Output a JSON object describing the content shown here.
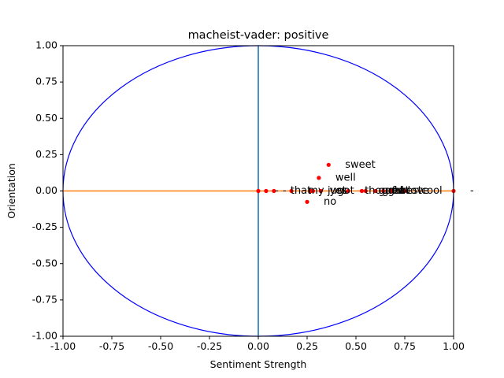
{
  "chart_data": {
    "type": "scatter",
    "title": "macheist-vader: positive",
    "xlabel": "Sentiment Strength",
    "ylabel": "Orientation",
    "xlim": [
      -1.0,
      1.0
    ],
    "ylim": [
      -1.0,
      1.0
    ],
    "x_ticks": [
      "-1.00",
      "-0.75",
      "-0.50",
      "-0.25",
      "0.00",
      "0.25",
      "0.50",
      "0.75",
      "1.00"
    ],
    "y_ticks": [
      "-1.00",
      "-0.75",
      "-0.50",
      "-0.25",
      "0.00",
      "0.25",
      "0.50",
      "0.75",
      "1.00"
    ],
    "x_tick_values": [
      -1.0,
      -0.75,
      -0.5,
      -0.25,
      0.0,
      0.25,
      0.5,
      0.75,
      1.0
    ],
    "y_tick_values": [
      -1.0,
      -0.75,
      -0.5,
      -0.25,
      0.0,
      0.25,
      0.5,
      0.75,
      1.0
    ],
    "grid": false,
    "unit_circle": true,
    "colors": {
      "circle": "#0000ff",
      "vertical_line": "#1f77b4",
      "horizontal_line": "#ff7f0e",
      "points": "#ff0000"
    },
    "points": [
      {
        "label": "sweet",
        "x": 0.36,
        "y": 0.18
      },
      {
        "label": "well",
        "x": 0.31,
        "y": 0.09
      },
      {
        "label": "no",
        "x": 0.25,
        "y": -0.075
      },
      {
        "label": "-",
        "x": 0.0,
        "y": 0.0
      },
      {
        "label": "-",
        "x": 0.04,
        "y": 0.0
      },
      {
        "label": "that",
        "x": 0.08,
        "y": 0.0
      },
      {
        "label": "my",
        "x": 0.17,
        "y": 0.0
      },
      {
        "label": "just",
        "x": 0.27,
        "y": 0.0
      },
      {
        "label": "yes",
        "x": 0.28,
        "y": 0.0
      },
      {
        "label": "got",
        "x": 0.32,
        "y": 0.0
      },
      {
        "label": "thought",
        "x": 0.46,
        "y": 0.0
      },
      {
        "label": "good",
        "x": 0.53,
        "y": 0.0
      },
      {
        "label": "great",
        "x": 0.55,
        "y": 0.0
      },
      {
        "label": "fun",
        "x": 0.6,
        "y": 0.0
      },
      {
        "label": "best",
        "x": 0.64,
        "y": 0.0
      },
      {
        "label": "love",
        "x": 0.68,
        "y": 0.0
      },
      {
        "label": "cool",
        "x": 0.75,
        "y": 0.0
      },
      {
        "label": "-",
        "x": 1.0,
        "y": 0.0
      }
    ]
  }
}
